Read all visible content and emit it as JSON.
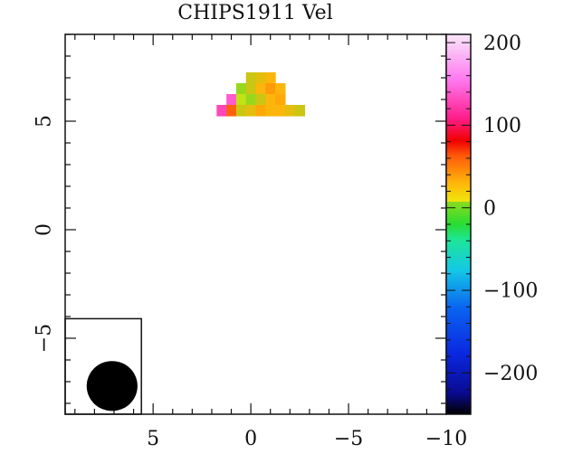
{
  "chart_data": {
    "type": "heatmap",
    "title": "CHIPS1911 Vel",
    "xlabel": "",
    "ylabel": "",
    "xlim": [
      9.5,
      -10
    ],
    "ylim": [
      -8.5,
      9
    ],
    "x_ticks": [
      5,
      0,
      -5,
      -10
    ],
    "x_tick_labels": [
      "5",
      "0",
      "−5",
      "−10"
    ],
    "y_ticks": [
      5,
      0,
      -5
    ],
    "y_tick_labels": [
      "5",
      "0",
      "−5"
    ],
    "colorbar": {
      "range": [
        -250,
        210
      ],
      "ticks": [
        200,
        100,
        0,
        -100,
        -200
      ],
      "tick_labels": [
        "200",
        "100",
        "0",
        "−100",
        "−200"
      ],
      "colormap": [
        "#000000",
        "#0a0a90",
        "#0a28e0",
        "#0a64f0",
        "#14c8e6",
        "#1ee696",
        "#28dc32",
        "#8cdc1e",
        "#f0e60a",
        "#ffb40a",
        "#ff5a0a",
        "#f00000",
        "#ff1e8c",
        "#ff78f0",
        "#fae6fa"
      ],
      "colormap_positions": [
        0,
        0.055,
        0.16,
        0.28,
        0.38,
        0.46,
        0.5,
        0.56,
        0.53,
        0.61,
        0.68,
        0.72,
        0.78,
        0.88,
        1
      ]
    },
    "beam": {
      "x": 7.1,
      "y": -7.2,
      "major": 2.6,
      "minor": 2.3
    },
    "pixels": [
      {
        "x": 0,
        "y": 7,
        "v": 20
      },
      {
        "x": -0.5,
        "y": 7,
        "v": 25
      },
      {
        "x": -1,
        "y": 7,
        "v": 30
      },
      {
        "x": 0.5,
        "y": 6.5,
        "v": 10
      },
      {
        "x": 0,
        "y": 6.5,
        "v": 20
      },
      {
        "x": -0.5,
        "y": 6.5,
        "v": 30
      },
      {
        "x": -1,
        "y": 6.5,
        "v": 40
      },
      {
        "x": -1.5,
        "y": 6.5,
        "v": 30
      },
      {
        "x": 1,
        "y": 6,
        "v": 140
      },
      {
        "x": 0.5,
        "y": 6,
        "v": 0
      },
      {
        "x": 0,
        "y": 6,
        "v": 10
      },
      {
        "x": -0.5,
        "y": 6,
        "v": 20
      },
      {
        "x": -1,
        "y": 6,
        "v": 30
      },
      {
        "x": -1.5,
        "y": 6,
        "v": 35
      },
      {
        "x": 1.5,
        "y": 5.5,
        "v": 130
      },
      {
        "x": 1,
        "y": 5.5,
        "v": 60
      },
      {
        "x": 0.5,
        "y": 5.5,
        "v": 20
      },
      {
        "x": 0,
        "y": 5.5,
        "v": 25
      },
      {
        "x": -0.5,
        "y": 5.5,
        "v": 35
      },
      {
        "x": -1,
        "y": 5.5,
        "v": 30
      },
      {
        "x": -1.5,
        "y": 5.5,
        "v": 30
      },
      {
        "x": -2,
        "y": 5.5,
        "v": 25
      },
      {
        "x": -2.5,
        "y": 5.5,
        "v": 20
      }
    ]
  }
}
